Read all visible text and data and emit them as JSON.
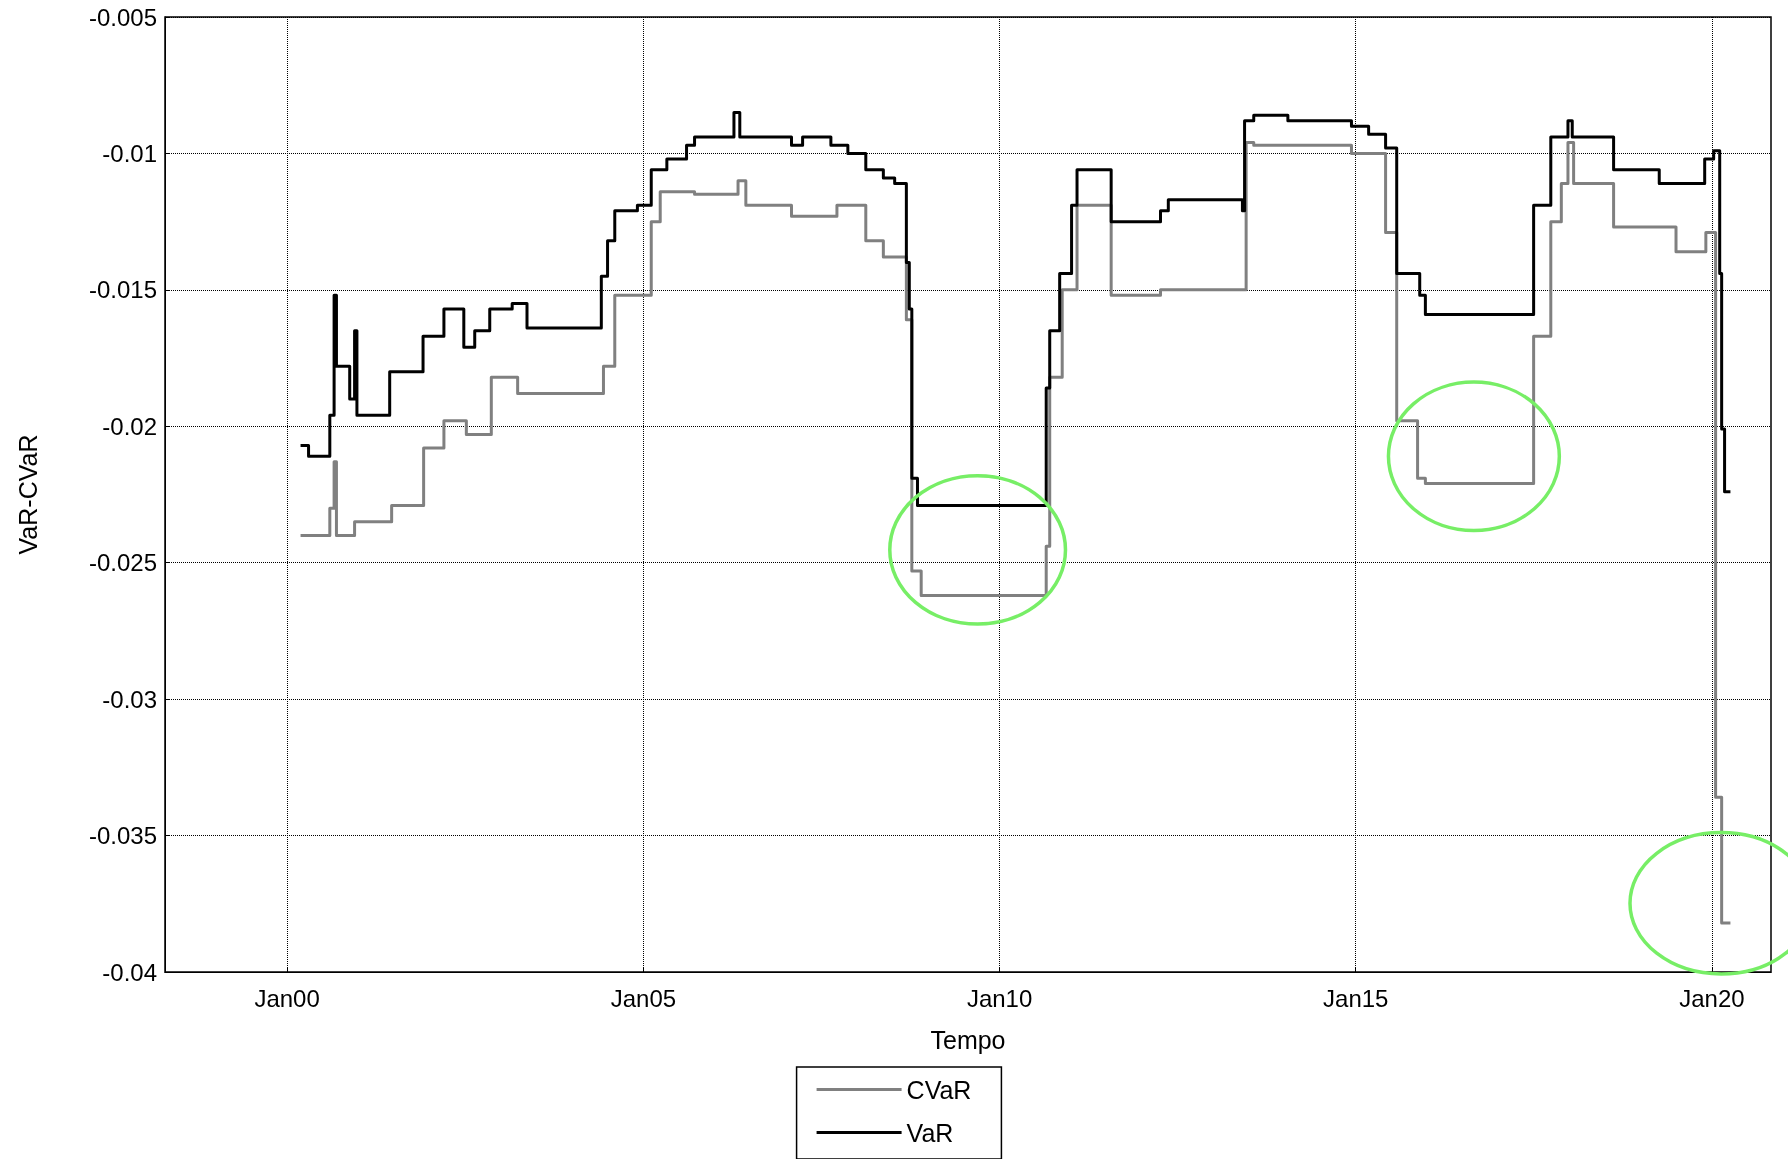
{
  "chart_data": {
    "type": "step",
    "xlabel": "Tempo",
    "ylabel": "VaR-CVaR",
    "xlim": [
      "1998-04-15",
      "2020-10-30"
    ],
    "xticks": [
      {
        "value": "2000-01-01",
        "label": "Jan00"
      },
      {
        "value": "2005-01-01",
        "label": "Jan05"
      },
      {
        "value": "2010-01-01",
        "label": "Jan10"
      },
      {
        "value": "2015-01-01",
        "label": "Jan15"
      },
      {
        "value": "2020-01-01",
        "label": "Jan20"
      }
    ],
    "ylim": [
      -0.04,
      -0.005
    ],
    "yticks": [
      -0.04,
      -0.035,
      -0.03,
      -0.025,
      -0.02,
      -0.015,
      -0.01,
      -0.005
    ],
    "grid": true,
    "legend": "bottom",
    "marker": "none",
    "line_style": "solid",
    "series": [
      {
        "name": "CVaR",
        "color": "#808080",
        "x": [
          "2000-03-10",
          "2000-08-07",
          "2000-08-29",
          "2000-09-10",
          "2000-12-12",
          "2001-06-20",
          "2001-12-01",
          "2002-03-15",
          "2002-07-08",
          "2002-11-13",
          "2003-03-28",
          "2004-06-10",
          "2004-08-07",
          "2005-02-10",
          "2005-03-28",
          "2005-09-20",
          "2006-05-01",
          "2006-06-10",
          "2007-01-30",
          "2007-09-20",
          "2008-02-15",
          "2008-05-15",
          "2008-09-10",
          "2008-10-08",
          "2008-11-25",
          "2010-08-28",
          "2010-09-15",
          "2010-11-18",
          "2011-02-02",
          "2011-07-27",
          "2012-04-05",
          "2013-06-18",
          "2013-07-27",
          "2014-12-10",
          "2015-06-03",
          "2015-07-30",
          "2015-11-14",
          "2015-12-24",
          "2017-07-01",
          "2017-09-27",
          "2017-11-20",
          "2017-12-24",
          "2018-01-22",
          "2018-08-15",
          "2019-07-01",
          "2019-12-01",
          "2020-01-20",
          "2020-02-20",
          "2020-04-05"
        ],
        "values": [
          -0.024,
          -0.023,
          -0.0213,
          -0.024,
          -0.0235,
          -0.0229,
          -0.0208,
          -0.0198,
          -0.0203,
          -0.0182,
          -0.0188,
          -0.0178,
          -0.0152,
          -0.0125,
          -0.0114,
          -0.0115,
          -0.011,
          -0.0119,
          -0.0123,
          -0.0119,
          -0.0132,
          -0.0138,
          -0.0161,
          -0.0253,
          -0.0262,
          -0.0244,
          -0.0182,
          -0.015,
          -0.0119,
          -0.0152,
          -0.015,
          -0.0096,
          -0.0097,
          -0.01,
          -0.0129,
          -0.0198,
          -0.0219,
          -0.0221,
          -0.0167,
          -0.0125,
          -0.0111,
          -0.0096,
          -0.0111,
          -0.0127,
          -0.0136,
          -0.0129,
          -0.0336,
          -0.0382,
          -0.0382
        ]
      },
      {
        "name": "VaR",
        "color": "#000000",
        "x": [
          "2000-03-10",
          "2000-04-20",
          "2000-08-07",
          "2000-08-29",
          "2000-09-10",
          "2000-11-17",
          "2000-12-12",
          "2000-12-24",
          "2001-06-10",
          "2001-11-28",
          "2002-03-15",
          "2002-06-25",
          "2002-08-20",
          "2002-11-05",
          "2003-02-28",
          "2003-05-15",
          "2004-05-30",
          "2004-07-01",
          "2004-08-07",
          "2004-12-01",
          "2005-02-10",
          "2005-05-01",
          "2005-08-10",
          "2005-09-20",
          "2006-04-10",
          "2006-05-10",
          "2007-01-30",
          "2007-03-28",
          "2007-08-20",
          "2007-11-15",
          "2008-02-15",
          "2008-05-15",
          "2008-07-12",
          "2008-09-10",
          "2008-09-25",
          "2008-10-08",
          "2008-11-06",
          "2010-08-28",
          "2010-09-15",
          "2010-11-05",
          "2011-01-05",
          "2011-02-02",
          "2011-07-27",
          "2012-04-05",
          "2012-05-15",
          "2013-05-30",
          "2013-06-10",
          "2013-07-27",
          "2014-01-18",
          "2014-12-10",
          "2015-03-08",
          "2015-06-03",
          "2015-07-30",
          "2015-11-25",
          "2015-12-24",
          "2017-07-01",
          "2017-09-27",
          "2017-12-24",
          "2018-01-15",
          "2018-08-15",
          "2019-04-06",
          "2019-11-25",
          "2020-01-10",
          "2020-02-10",
          "2020-02-20",
          "2020-03-06",
          "2020-04-05"
        ],
        "values": [
          -0.0207,
          -0.0211,
          -0.0196,
          -0.0152,
          -0.0178,
          -0.019,
          -0.0165,
          -0.0196,
          -0.018,
          -0.0167,
          -0.0157,
          -0.0171,
          -0.0165,
          -0.0157,
          -0.0155,
          -0.0164,
          -0.0145,
          -0.0132,
          -0.0121,
          -0.0119,
          -0.0106,
          -0.0102,
          -0.0097,
          -0.0094,
          -0.0085,
          -0.0094,
          -0.0097,
          -0.0094,
          -0.0097,
          -0.01,
          -0.0106,
          -0.0109,
          -0.0111,
          -0.014,
          -0.0157,
          -0.0219,
          -0.0229,
          -0.0186,
          -0.0165,
          -0.0144,
          -0.0119,
          -0.0106,
          -0.0125,
          -0.0121,
          -0.0117,
          -0.0121,
          -0.0088,
          -0.0086,
          -0.0088,
          -0.009,
          -0.0093,
          -0.0098,
          -0.0144,
          -0.0152,
          -0.0159,
          -0.0119,
          -0.0094,
          -0.0088,
          -0.0094,
          -0.0106,
          -0.0111,
          -0.0102,
          -0.0099,
          -0.0144,
          -0.0201,
          -0.0224,
          -0.0224
        ]
      }
    ]
  }
}
